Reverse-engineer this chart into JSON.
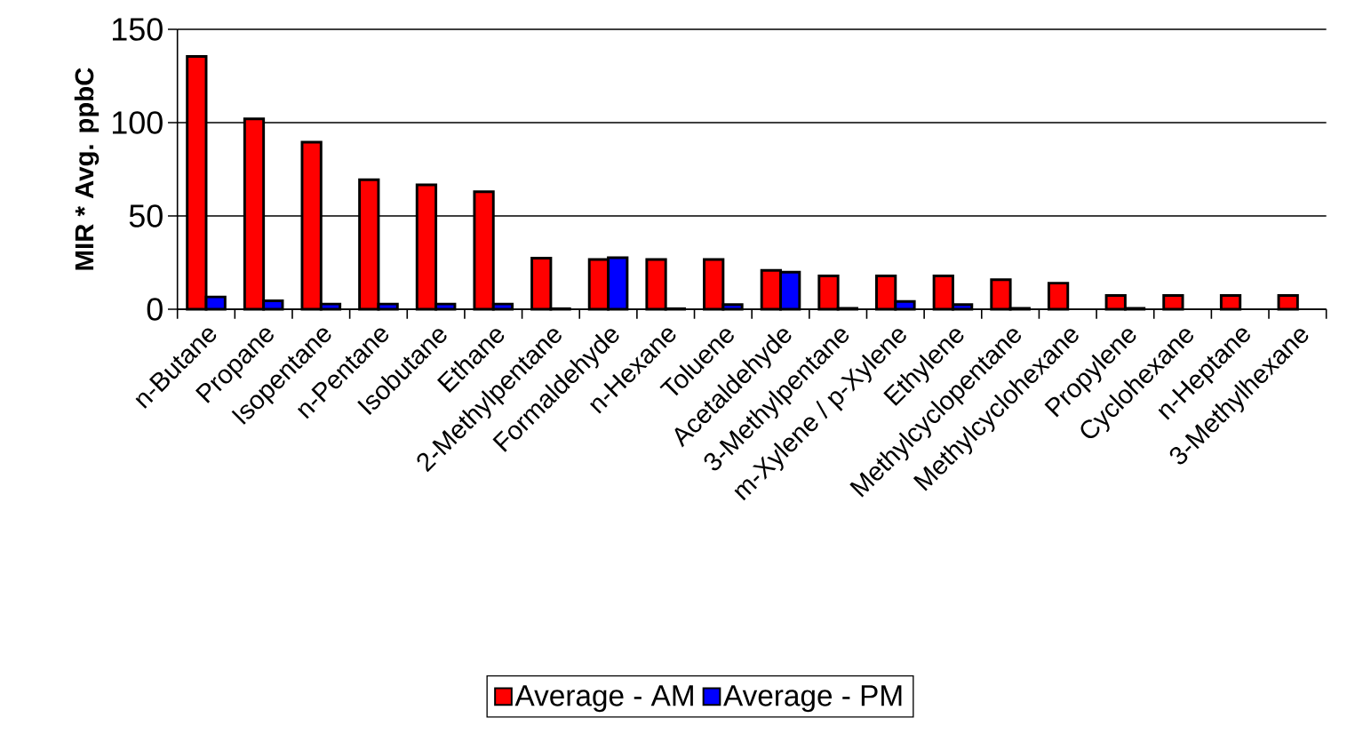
{
  "chart_data": {
    "type": "bar",
    "ylabel": "MIR * Avg. ppbC",
    "categories": [
      "n-Butane",
      "Propane",
      "Isopentane",
      "n-Pentane",
      "Isobutane",
      "Ethane",
      "2-Methylpentane",
      "Formaldehyde",
      "n-Hexane",
      "Toluene",
      "Acetaldehyde",
      "3-Methylpentane",
      "m-Xylene / p-Xylene",
      "Ethylene",
      "Methylcyclopentane",
      "Methylcyclohexane",
      "Propylene",
      "Cyclohexane",
      "n-Heptane",
      "3-Methylhexane"
    ],
    "series": [
      {
        "name": "Average - AM",
        "color": "#ff0000",
        "values": [
          135.5,
          102,
          89.5,
          69.4,
          66.7,
          63,
          27.4,
          26.7,
          26.7,
          26.7,
          20.8,
          17.9,
          17.9,
          17.9,
          15.8,
          14,
          7.4,
          7.4,
          7.4,
          7.4
        ]
      },
      {
        "name": "Average - PM",
        "color": "#0000ff",
        "values": [
          6.6,
          4.5,
          2.8,
          2.8,
          2.8,
          2.8,
          0.3,
          27.6,
          0.3,
          2.5,
          19.9,
          0.5,
          4.2,
          2.5,
          0.5,
          null,
          0.5,
          null,
          null,
          null
        ]
      }
    ],
    "ylim": [
      0,
      150
    ],
    "yticks": [
      0,
      50,
      100,
      150
    ],
    "grid": "y",
    "legend": "bottom"
  }
}
